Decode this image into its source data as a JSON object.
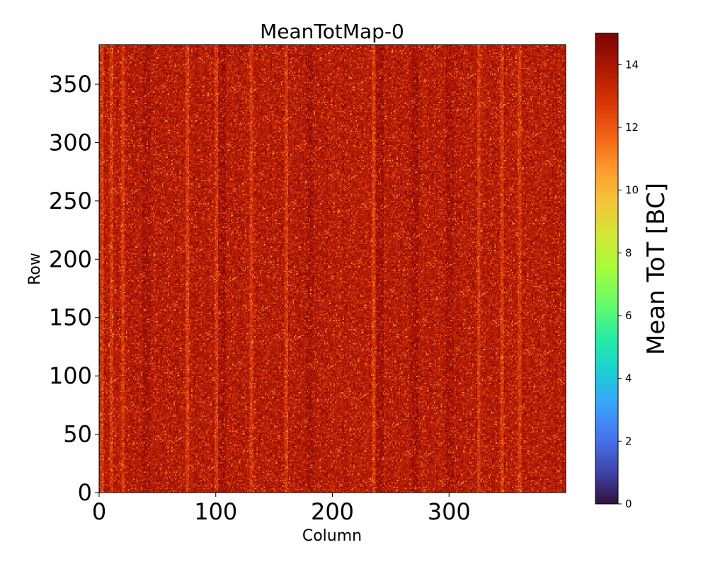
{
  "chart_data": {
    "type": "heatmap",
    "title": "MeanTotMap-0",
    "xlabel": "Column",
    "ylabel": "Row",
    "xlim": [
      0,
      400
    ],
    "ylim": [
      0,
      384
    ],
    "x_ticks": [
      0,
      100,
      200,
      300
    ],
    "y_ticks": [
      0,
      50,
      100,
      150,
      200,
      250,
      300,
      350
    ],
    "grid": false,
    "colorbar": {
      "label": "Mean ToT [BC]",
      "range": [
        0,
        15
      ],
      "ticks": [
        0,
        2,
        4,
        6,
        8,
        10,
        12,
        14
      ],
      "colormap": "turbo",
      "placement": "right"
    },
    "values_summary": {
      "typical_value": 14,
      "min_observed": 11,
      "max_observed": 15
    },
    "column_bands": {
      "lighter_columns": [
        2,
        10,
        20,
        75,
        100,
        130,
        160,
        235,
        325,
        345,
        360
      ],
      "darker_columns": [
        40,
        105,
        180,
        240,
        270,
        300
      ]
    }
  }
}
